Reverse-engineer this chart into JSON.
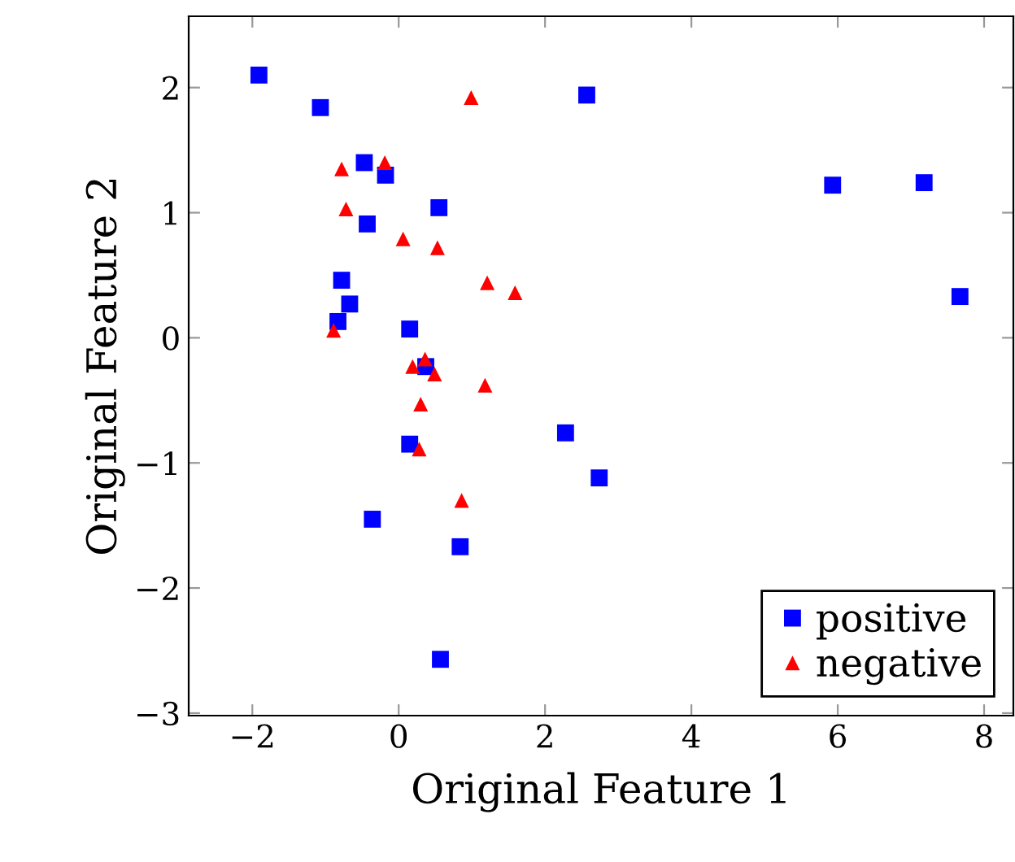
{
  "chart_data": {
    "type": "scatter",
    "xlabel": "Original Feature 1",
    "ylabel": "Original Feature 2",
    "xlim": [
      -2.87,
      8.4
    ],
    "ylim": [
      -3.02,
      2.57
    ],
    "xticks": [
      -2,
      0,
      2,
      4,
      6,
      8
    ],
    "yticks": [
      -3,
      -2,
      -1,
      0,
      1,
      2
    ],
    "grid": false,
    "legend": "bottom right",
    "series": [
      {
        "name": "positive",
        "color": "#0000ff",
        "marker": "square",
        "x": [
          -1.91,
          -1.07,
          -0.47,
          -0.18,
          0.55,
          -0.43,
          -0.78,
          -0.67,
          -0.83,
          0.15,
          0.37,
          0.15,
          -0.36,
          0.84,
          0.57,
          2.28,
          2.74,
          5.93,
          7.18,
          7.67,
          2.57
        ],
        "values": [
          2.1,
          1.84,
          1.4,
          1.3,
          1.04,
          0.91,
          0.46,
          0.27,
          0.13,
          0.07,
          -0.23,
          -0.85,
          -1.45,
          -1.67,
          -2.57,
          -0.76,
          -1.12,
          1.22,
          1.24,
          0.33,
          1.94
        ]
      },
      {
        "name": "negative",
        "color": "#ff0000",
        "marker": "triangle",
        "x": [
          0.99,
          -0.78,
          -0.19,
          -0.72,
          0.06,
          0.53,
          1.21,
          1.59,
          -0.89,
          0.36,
          0.19,
          0.49,
          1.18,
          0.3,
          0.28,
          0.86
        ],
        "values": [
          1.92,
          1.35,
          1.4,
          1.03,
          0.79,
          0.72,
          0.44,
          0.36,
          0.06,
          -0.17,
          -0.23,
          -0.29,
          -0.38,
          -0.53,
          -0.89,
          -1.3
        ]
      }
    ]
  }
}
